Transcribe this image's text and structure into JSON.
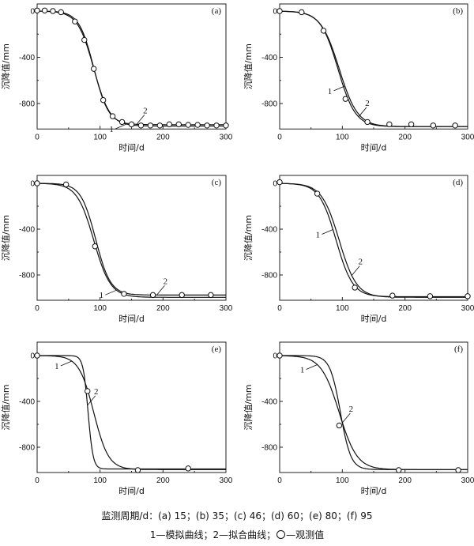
{
  "chart_data": [
    {
      "type": "line",
      "panel_label": "(a)",
      "xlabel": "时间/d",
      "ylabel": "沉降值/mm",
      "xlim": [
        0,
        300
      ],
      "ylim": [
        -1000,
        20
      ],
      "xticks": [
        0,
        100,
        200,
        300
      ],
      "yticks": [
        0,
        -400,
        -800
      ],
      "series": [
        {
          "id": "1",
          "kind": "curve",
          "params": {
            "final": -995,
            "t50": 90,
            "k": 0.078
          }
        },
        {
          "id": "2",
          "kind": "curve",
          "params": {
            "final": -983,
            "t50": 90,
            "k": 0.085
          }
        }
      ],
      "observed": {
        "x": [
          0,
          12,
          25,
          38,
          60,
          75,
          90,
          105,
          120,
          135,
          150,
          165,
          180,
          195,
          210,
          225,
          240,
          255,
          270,
          285,
          300
        ],
        "y": [
          5,
          5,
          0,
          -10,
          -90,
          -250,
          -500,
          -770,
          -910,
          -960,
          -980,
          -990,
          -990,
          -990,
          -980,
          -980,
          -985,
          -985,
          -990,
          -990,
          -990
        ]
      },
      "curve_labels": [
        {
          "text": "1",
          "at_x": 142
        },
        {
          "text": "2",
          "at_x": 158
        }
      ]
    },
    {
      "type": "line",
      "panel_label": "(b)",
      "xlabel": "时间/d",
      "ylabel": "沉降值/mm",
      "xlim": [
        0,
        300
      ],
      "ylim": [
        -1000,
        20
      ],
      "xticks": [
        0,
        100,
        200,
        300
      ],
      "yticks": [
        0,
        -400,
        -800
      ],
      "series": [
        {
          "id": "1",
          "kind": "curve",
          "params": {
            "final": -1000,
            "t50": 95,
            "k": 0.068
          }
        },
        {
          "id": "2",
          "kind": "curve",
          "params": {
            "final": -1000,
            "t50": 93,
            "k": 0.072
          }
        }
      ],
      "observed": {
        "x": [
          0,
          35,
          70,
          105,
          140,
          175,
          210,
          245,
          280
        ],
        "y": [
          0,
          -10,
          -170,
          -760,
          -960,
          -980,
          -980,
          -990,
          -990
        ]
      },
      "curve_labels": [
        {
          "text": "1",
          "at_x": 104
        },
        {
          "text": "2",
          "at_x": 126
        }
      ]
    },
    {
      "type": "line",
      "panel_label": "(c)",
      "xlabel": "时间/d",
      "ylabel": "沉降值/mm",
      "xlim": [
        0,
        300
      ],
      "ylim": [
        -1000,
        20
      ],
      "xticks": [
        0,
        100,
        200,
        300
      ],
      "yticks": [
        0,
        -400,
        -800
      ],
      "series": [
        {
          "id": "1",
          "kind": "curve",
          "params": {
            "final": -995,
            "t50": 90,
            "k": 0.075
          }
        },
        {
          "id": "2",
          "kind": "curve",
          "params": {
            "final": -975,
            "t50": 93,
            "k": 0.085
          }
        }
      ],
      "observed": {
        "x": [
          0,
          46,
          92,
          138,
          184,
          230,
          276
        ],
        "y": [
          0,
          -10,
          -550,
          -965,
          -975,
          -975,
          -975
        ]
      },
      "curve_labels": [
        {
          "text": "1",
          "at_x": 126
        },
        {
          "text": "2",
          "at_x": 190
        }
      ]
    },
    {
      "type": "line",
      "panel_label": "(d)",
      "xlabel": "时间/d",
      "ylabel": "沉降值/mm",
      "xlim": [
        0,
        300
      ],
      "ylim": [
        -1000,
        20
      ],
      "xticks": [
        0,
        100,
        200,
        300
      ],
      "yticks": [
        0,
        -400,
        -800
      ],
      "series": [
        {
          "id": "1",
          "kind": "curve",
          "params": {
            "final": -990,
            "t50": 90,
            "k": 0.075
          }
        },
        {
          "id": "2",
          "kind": "curve",
          "params": {
            "final": -995,
            "t50": 95,
            "k": 0.072
          }
        }
      ],
      "observed": {
        "x": [
          0,
          60,
          120,
          180,
          240,
          300
        ],
        "y": [
          10,
          -90,
          -910,
          -980,
          -985,
          -985
        ]
      },
      "curve_labels": [
        {
          "text": "1",
          "at_x": 85
        },
        {
          "text": "2",
          "at_x": 115
        }
      ]
    },
    {
      "type": "line",
      "panel_label": "(e)",
      "xlabel": "时间/d",
      "ylabel": "沉降值/mm",
      "xlim": [
        0,
        300
      ],
      "ylim": [
        -1000,
        20
      ],
      "xticks": [
        0,
        100,
        200,
        300
      ],
      "yticks": [
        0,
        -400,
        -800
      ],
      "series": [
        {
          "id": "1",
          "kind": "curve",
          "params": {
            "final": -995,
            "t50": 90,
            "k": 0.085
          }
        },
        {
          "id": "2",
          "kind": "curve",
          "params": {
            "final": -990,
            "t50": 81,
            "k": 0.25
          }
        }
      ],
      "observed": {
        "x": [
          0,
          80,
          160,
          240
        ],
        "y": [
          0,
          -310,
          -1000,
          -985
        ]
      },
      "curve_labels": [
        {
          "text": "1",
          "at_x": 55
        },
        {
          "text": "2",
          "at_x": 80
        }
      ]
    },
    {
      "type": "line",
      "panel_label": "(f)",
      "xlabel": "时间/d",
      "ylabel": "沉降值/mm",
      "xlim": [
        0,
        300
      ],
      "ylim": [
        -1000,
        20
      ],
      "xticks": [
        0,
        100,
        200,
        300
      ],
      "yticks": [
        0,
        -400,
        -800
      ],
      "series": [
        {
          "id": "1",
          "kind": "curve",
          "params": {
            "final": -995,
            "t50": 95,
            "k": 0.07
          }
        },
        {
          "id": "2",
          "kind": "curve",
          "params": {
            "final": -995,
            "t50": 97,
            "k": 0.12
          }
        }
      ],
      "observed": {
        "x": [
          0,
          95,
          190,
          285
        ],
        "y": [
          0,
          -610,
          -1000,
          -1000
        ]
      },
      "curve_labels": [
        {
          "text": "1",
          "at_x": 60
        },
        {
          "text": "2",
          "at_x": 100
        }
      ]
    }
  ],
  "caption": {
    "line1": "监测周期/d：(a) 15；(b) 35；(c) 46；(d) 60；(e) 80；(f) 95",
    "line2_part1": "1—模拟曲线；2—拟合曲线；",
    "line2_part2": "—观测值"
  }
}
